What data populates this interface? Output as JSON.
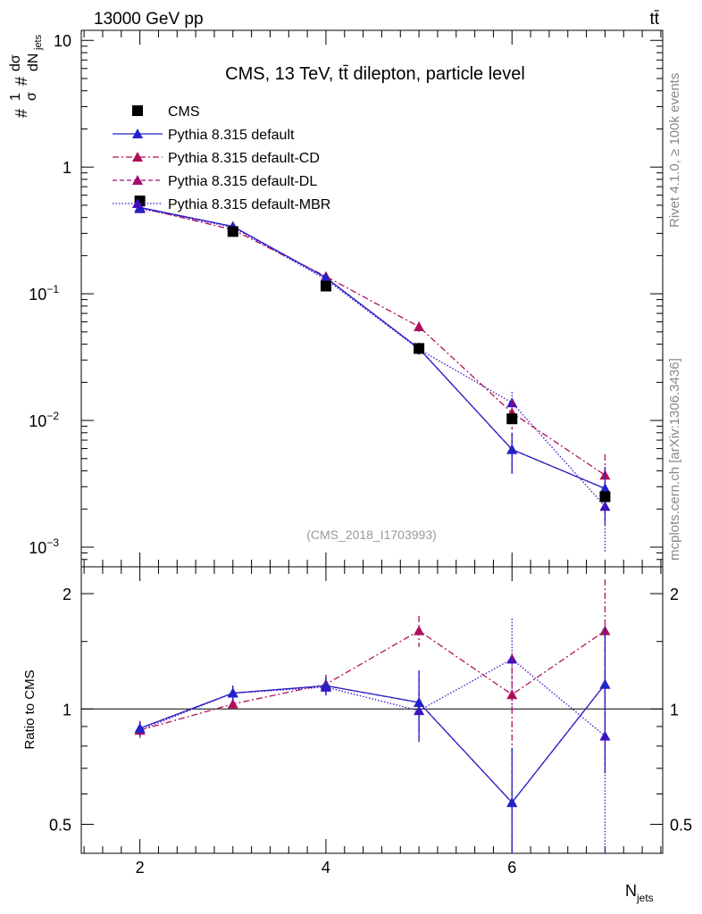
{
  "header": {
    "energy_label": "13000 GeV pp",
    "process_label": "tt̄"
  },
  "side_labels": {
    "rivet": "Rivet 4.1.0, ≥ 100k events",
    "mcplots": "mcplots.cern.ch [arXiv:1306.3436]"
  },
  "chart_data": [
    {
      "type": "line",
      "panel": "main",
      "title": "CMS, 13 TeV, tt̄ dilepton, particle level",
      "analysis_tag": "(CMS_2018_I1703993)",
      "ylabel": "1/σ dσ/dN_jets",
      "ylabel_parts": {
        "lhs": "#",
        "frac_top": "1",
        "frac_bot": "σ",
        "mid": "#",
        "deriv_top": "dσ",
        "deriv_bot": "dN",
        "deriv_sub": "jets"
      },
      "yscale": "log",
      "ylim": [
        0.0007,
        12
      ],
      "xlim": [
        1.37,
        7.62
      ],
      "yticks": [
        {
          "value": 10,
          "label": "10"
        },
        {
          "value": 1,
          "label": "1"
        },
        {
          "value": 0.1,
          "label": "10",
          "exp": "−1"
        },
        {
          "value": 0.01,
          "label": "10",
          "exp": "−2"
        },
        {
          "value": 0.001,
          "label": "10",
          "exp": "−3"
        }
      ],
      "legend_position": "top-left",
      "series": [
        {
          "name": "CMS",
          "color": "#000000",
          "style": "marker",
          "marker": "square",
          "x": [
            2,
            3,
            4,
            5,
            6,
            7
          ],
          "y": [
            0.54,
            0.31,
            0.115,
            0.037,
            0.0103,
            0.0025
          ]
        },
        {
          "name": "Pythia 8.315 default",
          "color": "#2222cc",
          "style": "solid",
          "marker": "triangle",
          "x": [
            2,
            3,
            4,
            5,
            6,
            7
          ],
          "y": [
            0.48,
            0.34,
            0.134,
            0.037,
            0.0059,
            0.0029
          ],
          "err": [
            0.02,
            0.014,
            0.007,
            0.004,
            0.0021,
            0.0014
          ]
        },
        {
          "name": "Pythia 8.315 default-CD",
          "color": "#b0105a",
          "style": "dashdot",
          "marker": "triangle",
          "x": [
            2,
            3,
            4,
            5,
            6,
            7
          ],
          "y": [
            0.48,
            0.32,
            0.137,
            0.055,
            0.0115,
            0.0037
          ],
          "err": [
            0.02,
            0.014,
            0.007,
            0.005,
            0.003,
            0.0017
          ]
        },
        {
          "name": "Pythia 8.315 default-DL",
          "color": "#a01070",
          "style": "dashed",
          "marker": "triangle",
          "x": [
            2,
            3,
            4,
            5,
            6,
            7
          ],
          "y": [
            0.48,
            0.34,
            0.134,
            0.037,
            0.0059,
            0.0029
          ],
          "err": [
            0.02,
            0.014,
            0.007,
            0.004,
            0.0021,
            0.0014
          ]
        },
        {
          "name": "Pythia 8.315 default-MBR",
          "color": "#4010c0",
          "style": "dotted",
          "marker": "triangle",
          "x": [
            2,
            3,
            4,
            5,
            6,
            7
          ],
          "y": [
            0.47,
            0.335,
            0.13,
            0.0365,
            0.0138,
            0.0021
          ],
          "err": [
            0.02,
            0.014,
            0.007,
            0.004,
            0.003,
            0.0012
          ]
        }
      ]
    },
    {
      "type": "line",
      "panel": "ratio",
      "ylabel": "Ratio to CMS",
      "xlabel": "N",
      "xlabel_sub": "jets",
      "yscale": "log",
      "ylim": [
        0.42,
        2.35
      ],
      "xlim": [
        1.37,
        7.62
      ],
      "reference_line": 1,
      "yticks": [
        {
          "value": 0.5,
          "label": "0.5"
        },
        {
          "value": 1,
          "label": "1"
        },
        {
          "value": 2,
          "label": "2"
        }
      ],
      "xticks": [
        {
          "value": 2,
          "label": "2"
        },
        {
          "value": 4,
          "label": "4"
        },
        {
          "value": 6,
          "label": "6"
        }
      ],
      "series": [
        {
          "name": "Pythia 8.315 default",
          "color": "#2222cc",
          "style": "solid",
          "x": [
            2,
            3,
            4,
            5,
            6,
            7
          ],
          "y": [
            0.89,
            1.1,
            1.15,
            1.04,
            0.57,
            1.16
          ],
          "err": [
            0.04,
            0.05,
            0.06,
            0.22,
            0.22,
            0.48
          ]
        },
        {
          "name": "Pythia 8.315 default-CD",
          "color": "#b0105a",
          "style": "dashdot",
          "x": [
            2,
            3,
            4,
            5,
            6,
            7
          ],
          "y": [
            0.88,
            1.03,
            1.16,
            1.6,
            1.09,
            1.6
          ],
          "err": [
            0.04,
            0.04,
            0.07,
            0.15,
            0.3,
            0.58
          ]
        },
        {
          "name": "Pythia 8.315 default-DL",
          "color": "#a01070",
          "style": "dashed",
          "x": [
            2,
            3,
            4,
            5,
            6,
            7
          ],
          "y": [
            0.89,
            1.1,
            1.15,
            1.04,
            0.57,
            1.16
          ],
          "err": [
            0.04,
            0.05,
            0.06,
            0.22,
            0.22,
            0.48
          ]
        },
        {
          "name": "Pythia 8.315 default-MBR",
          "color": "#4010c0",
          "style": "dotted",
          "x": [
            2,
            3,
            4,
            5,
            6,
            7
          ],
          "y": [
            0.88,
            1.1,
            1.14,
            0.99,
            1.35,
            0.85
          ],
          "err": [
            0.04,
            0.05,
            0.06,
            0.12,
            0.37,
            0.5
          ]
        }
      ]
    }
  ]
}
